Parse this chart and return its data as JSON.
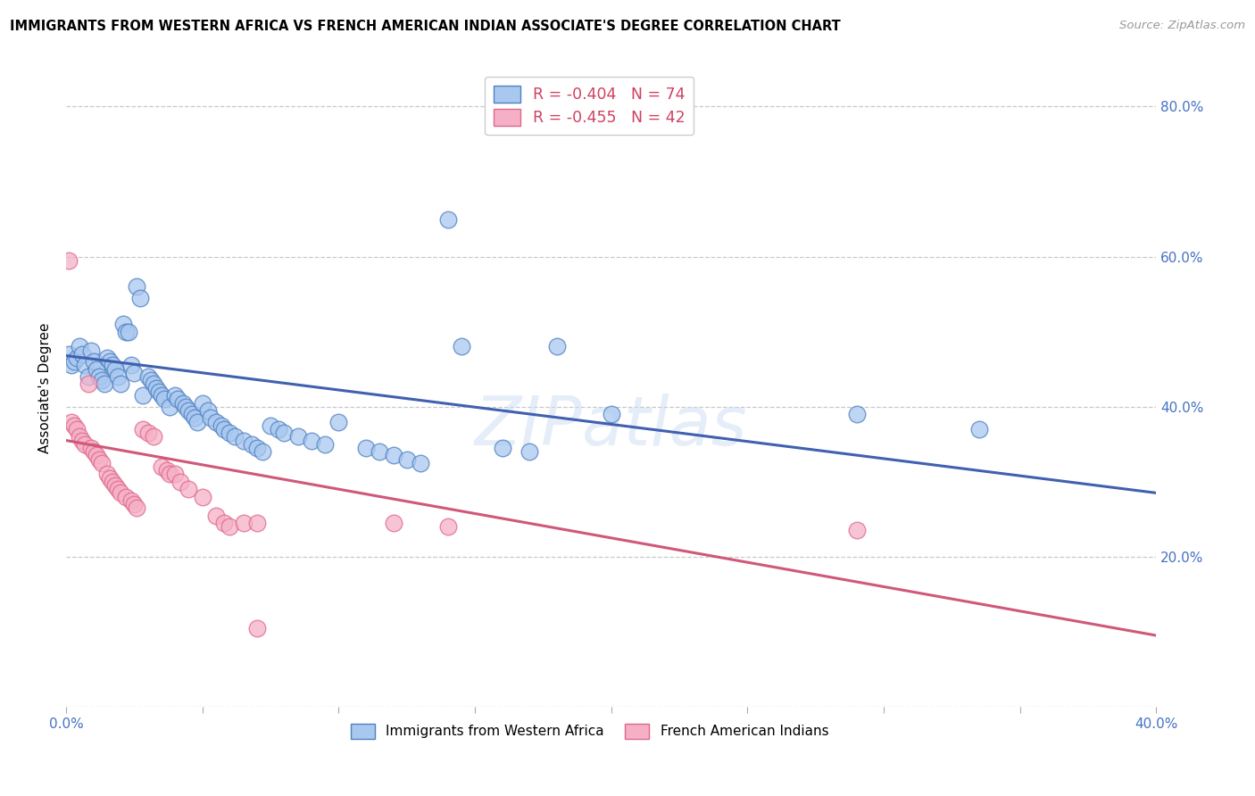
{
  "title": "IMMIGRANTS FROM WESTERN AFRICA VS FRENCH AMERICAN INDIAN ASSOCIATE'S DEGREE CORRELATION CHART",
  "source": "Source: ZipAtlas.com",
  "ylabel_label": "Associate's Degree",
  "x_min": 0.0,
  "x_max": 0.4,
  "y_min": 0.0,
  "y_max": 0.85,
  "x_ticks": [
    0.0,
    0.05,
    0.1,
    0.15,
    0.2,
    0.25,
    0.3,
    0.35,
    0.4
  ],
  "y_ticks": [
    0.0,
    0.2,
    0.4,
    0.6,
    0.8
  ],
  "y_tick_labels_right": [
    "",
    "20.0%",
    "40.0%",
    "60.0%",
    "80.0%"
  ],
  "background_color": "#ffffff",
  "grid_color": "#c8c8c8",
  "blue_color": "#a8c8f0",
  "pink_color": "#f5b0c8",
  "blue_edge_color": "#5080c0",
  "pink_edge_color": "#e06888",
  "blue_line_color": "#4060b0",
  "pink_line_color": "#d05878",
  "tick_color": "#4472c4",
  "legend_value_color": "#d04060",
  "blue_scatter": [
    [
      0.001,
      0.47
    ],
    [
      0.002,
      0.455
    ],
    [
      0.003,
      0.46
    ],
    [
      0.004,
      0.465
    ],
    [
      0.005,
      0.48
    ],
    [
      0.006,
      0.47
    ],
    [
      0.007,
      0.455
    ],
    [
      0.008,
      0.44
    ],
    [
      0.009,
      0.475
    ],
    [
      0.01,
      0.46
    ],
    [
      0.011,
      0.45
    ],
    [
      0.012,
      0.44
    ],
    [
      0.013,
      0.435
    ],
    [
      0.014,
      0.43
    ],
    [
      0.015,
      0.465
    ],
    [
      0.016,
      0.46
    ],
    [
      0.017,
      0.455
    ],
    [
      0.018,
      0.45
    ],
    [
      0.019,
      0.44
    ],
    [
      0.02,
      0.43
    ],
    [
      0.021,
      0.51
    ],
    [
      0.022,
      0.5
    ],
    [
      0.023,
      0.5
    ],
    [
      0.024,
      0.455
    ],
    [
      0.025,
      0.445
    ],
    [
      0.026,
      0.56
    ],
    [
      0.027,
      0.545
    ],
    [
      0.028,
      0.415
    ],
    [
      0.03,
      0.44
    ],
    [
      0.031,
      0.435
    ],
    [
      0.032,
      0.43
    ],
    [
      0.033,
      0.425
    ],
    [
      0.034,
      0.42
    ],
    [
      0.035,
      0.415
    ],
    [
      0.036,
      0.41
    ],
    [
      0.038,
      0.4
    ],
    [
      0.04,
      0.415
    ],
    [
      0.041,
      0.41
    ],
    [
      0.043,
      0.405
    ],
    [
      0.044,
      0.4
    ],
    [
      0.045,
      0.395
    ],
    [
      0.046,
      0.39
    ],
    [
      0.047,
      0.385
    ],
    [
      0.048,
      0.38
    ],
    [
      0.05,
      0.405
    ],
    [
      0.052,
      0.395
    ],
    [
      0.053,
      0.385
    ],
    [
      0.055,
      0.38
    ],
    [
      0.057,
      0.375
    ],
    [
      0.058,
      0.37
    ],
    [
      0.06,
      0.365
    ],
    [
      0.062,
      0.36
    ],
    [
      0.065,
      0.355
    ],
    [
      0.068,
      0.35
    ],
    [
      0.07,
      0.345
    ],
    [
      0.072,
      0.34
    ],
    [
      0.075,
      0.375
    ],
    [
      0.078,
      0.37
    ],
    [
      0.08,
      0.365
    ],
    [
      0.085,
      0.36
    ],
    [
      0.09,
      0.355
    ],
    [
      0.095,
      0.35
    ],
    [
      0.1,
      0.38
    ],
    [
      0.11,
      0.345
    ],
    [
      0.115,
      0.34
    ],
    [
      0.12,
      0.335
    ],
    [
      0.125,
      0.33
    ],
    [
      0.13,
      0.325
    ],
    [
      0.14,
      0.65
    ],
    [
      0.145,
      0.48
    ],
    [
      0.16,
      0.345
    ],
    [
      0.17,
      0.34
    ],
    [
      0.18,
      0.48
    ],
    [
      0.2,
      0.39
    ],
    [
      0.29,
      0.39
    ],
    [
      0.335,
      0.37
    ]
  ],
  "pink_scatter": [
    [
      0.001,
      0.595
    ],
    [
      0.002,
      0.38
    ],
    [
      0.003,
      0.375
    ],
    [
      0.004,
      0.37
    ],
    [
      0.005,
      0.36
    ],
    [
      0.006,
      0.355
    ],
    [
      0.007,
      0.35
    ],
    [
      0.008,
      0.43
    ],
    [
      0.009,
      0.345
    ],
    [
      0.01,
      0.34
    ],
    [
      0.011,
      0.335
    ],
    [
      0.012,
      0.33
    ],
    [
      0.013,
      0.325
    ],
    [
      0.015,
      0.31
    ],
    [
      0.016,
      0.305
    ],
    [
      0.017,
      0.3
    ],
    [
      0.018,
      0.295
    ],
    [
      0.019,
      0.29
    ],
    [
      0.02,
      0.285
    ],
    [
      0.022,
      0.28
    ],
    [
      0.024,
      0.275
    ],
    [
      0.025,
      0.27
    ],
    [
      0.026,
      0.265
    ],
    [
      0.028,
      0.37
    ],
    [
      0.03,
      0.365
    ],
    [
      0.032,
      0.36
    ],
    [
      0.035,
      0.32
    ],
    [
      0.037,
      0.315
    ],
    [
      0.038,
      0.31
    ],
    [
      0.04,
      0.31
    ],
    [
      0.042,
      0.3
    ],
    [
      0.045,
      0.29
    ],
    [
      0.05,
      0.28
    ],
    [
      0.055,
      0.255
    ],
    [
      0.058,
      0.245
    ],
    [
      0.06,
      0.24
    ],
    [
      0.065,
      0.245
    ],
    [
      0.07,
      0.245
    ],
    [
      0.12,
      0.245
    ],
    [
      0.14,
      0.24
    ],
    [
      0.29,
      0.235
    ],
    [
      0.07,
      0.105
    ]
  ],
  "blue_trendline_x": [
    0.0,
    0.4
  ],
  "blue_trendline_y": [
    0.468,
    0.285
  ],
  "pink_trendline_x": [
    0.0,
    0.4
  ],
  "pink_trendline_y": [
    0.355,
    0.095
  ]
}
